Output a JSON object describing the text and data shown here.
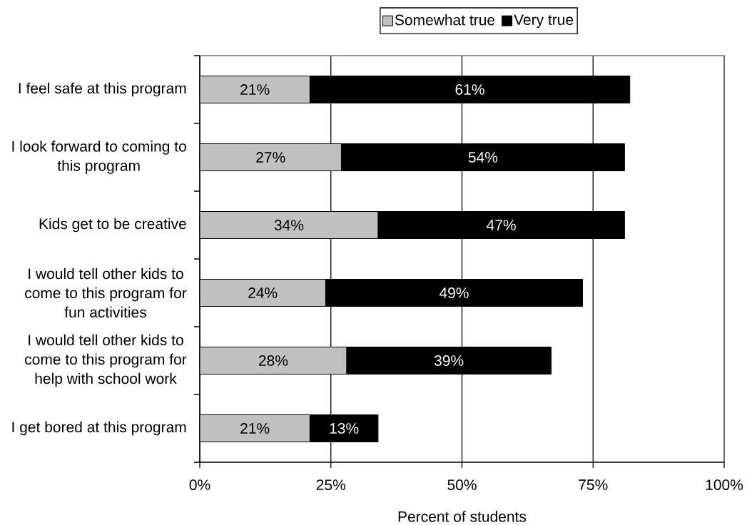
{
  "chart_data": {
    "type": "bar",
    "orientation": "horizontal",
    "stacked": true,
    "xlabel": "Percent of students",
    "categories": [
      "I feel safe at this program",
      "I look forward to coming to this program",
      "Kids get to be creative",
      "I would tell other kids to come to this program for fun activities",
      "I would tell other kids to come to this program for help with school work",
      "I get bored at this program"
    ],
    "series": [
      {
        "name": "Somewhat true",
        "color": "#c0c0c0",
        "values": [
          21,
          27,
          34,
          24,
          28,
          21
        ],
        "value_labels": [
          "21%",
          "27%",
          "34%",
          "24%",
          "28%",
          "21%"
        ]
      },
      {
        "name": "Very true",
        "color": "#000000",
        "values": [
          61,
          54,
          47,
          49,
          39,
          13
        ],
        "value_labels": [
          "61%",
          "54%",
          "47%",
          "49%",
          "39%",
          "13%"
        ]
      }
    ],
    "xlim": [
      0,
      100
    ],
    "xticks": [
      {
        "value": 0,
        "label": "0%"
      },
      {
        "value": 25,
        "label": "25%"
      },
      {
        "value": 50,
        "label": "50%"
      },
      {
        "value": 75,
        "label": "75%"
      },
      {
        "value": 100,
        "label": "100%"
      }
    ],
    "grid": "x",
    "legend": "top"
  }
}
